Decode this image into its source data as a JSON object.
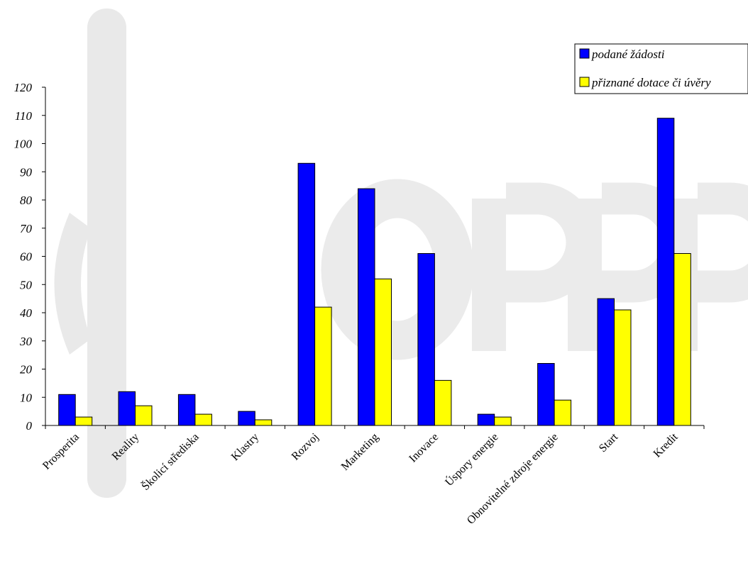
{
  "chart_data": {
    "type": "bar",
    "categories": [
      "Prosperita",
      "Reality",
      "Školicí střediska",
      "Klastry",
      "Rozvoj",
      "Marketing",
      "Inovace",
      "Úspory energie",
      "Obnovitelné zdroje energie",
      "Start",
      "Kredit"
    ],
    "series": [
      {
        "name": "podané žádosti",
        "values": [
          11,
          12,
          11,
          5,
          93,
          84,
          61,
          4,
          22,
          45,
          109
        ],
        "color": "#0000ff"
      },
      {
        "name": "přiznané dotace či úvěry",
        "values": [
          3,
          7,
          4,
          2,
          42,
          52,
          16,
          3,
          9,
          41,
          61
        ],
        "color": "#ffff00"
      }
    ],
    "ylim": [
      0,
      120
    ],
    "yticks": [
      0,
      10,
      20,
      30,
      40,
      50,
      60,
      70,
      80,
      90,
      100,
      110,
      120
    ],
    "legend_position": "top-right",
    "grid": false,
    "watermark_text": "OPPP"
  }
}
